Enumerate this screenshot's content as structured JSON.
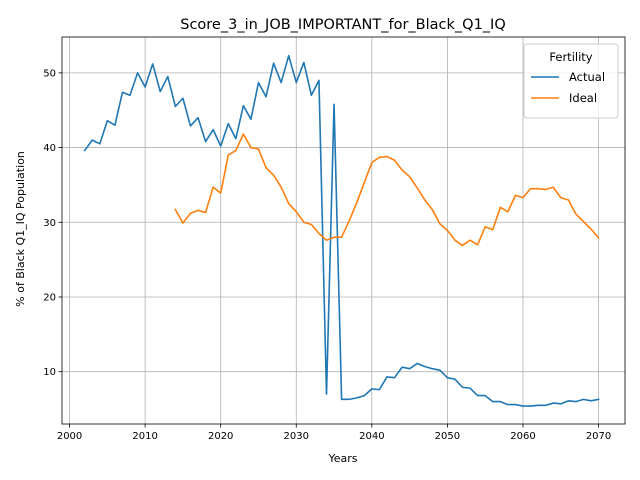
{
  "chart_data": {
    "type": "line",
    "title": "Score_3_in_JOB_IMPORTANT_for_Black_Q1_IQ",
    "xlabel": "Years",
    "ylabel": "% of Black Q1_IQ Population",
    "xlim": [
      1999,
      2073.5
    ],
    "ylim": [
      3.0,
      54.8
    ],
    "xticks": [
      2000,
      2010,
      2020,
      2030,
      2040,
      2050,
      2060,
      2070
    ],
    "yticks": [
      10,
      20,
      30,
      40,
      50
    ],
    "grid": true,
    "legend": {
      "title": "Fertility",
      "placement": "top-right"
    },
    "series": [
      {
        "name": "Actual",
        "color": "#1f77b4",
        "x": [
          2002,
          2003,
          2004,
          2005,
          2006,
          2007,
          2008,
          2009,
          2010,
          2011,
          2012,
          2013,
          2014,
          2015,
          2016,
          2017,
          2018,
          2019,
          2020,
          2021,
          2022,
          2023,
          2024,
          2025,
          2026,
          2027,
          2028,
          2029,
          2030,
          2031,
          2032,
          2033,
          2034,
          2035,
          2036,
          2037,
          2038,
          2039,
          2040,
          2041,
          2042,
          2043,
          2044,
          2045,
          2046,
          2047,
          2048,
          2049,
          2050,
          2051,
          2052,
          2053,
          2054,
          2055,
          2056,
          2057,
          2058,
          2059,
          2060,
          2061,
          2062,
          2063,
          2064,
          2065,
          2066,
          2067,
          2068,
          2069,
          2070
        ],
        "values": [
          39.6,
          41.0,
          40.5,
          43.6,
          43.0,
          47.4,
          47.0,
          50.0,
          48.1,
          51.2,
          47.5,
          49.5,
          45.5,
          46.6,
          42.9,
          44.0,
          40.8,
          42.4,
          40.2,
          43.2,
          41.2,
          45.6,
          43.8,
          48.7,
          46.8,
          51.3,
          48.7,
          52.3,
          48.7,
          51.4,
          47.0,
          49.0,
          7.0,
          45.8,
          6.3,
          6.3,
          6.5,
          6.8,
          7.7,
          7.6,
          9.3,
          9.2,
          10.6,
          10.4,
          11.1,
          10.7,
          10.4,
          10.2,
          9.2,
          9.0,
          7.9,
          7.8,
          6.8,
          6.8,
          6.0,
          6.0,
          5.6,
          5.6,
          5.4,
          5.4,
          5.5,
          5.5,
          5.8,
          5.7,
          6.1,
          6.0,
          6.3,
          6.1,
          6.3
        ]
      },
      {
        "name": "Ideal",
        "color": "#ff7f0e",
        "x": [
          2014,
          2015,
          2016,
          2017,
          2018,
          2019,
          2020,
          2021,
          2022,
          2023,
          2024,
          2025,
          2026,
          2027,
          2028,
          2029,
          2030,
          2031,
          2032,
          2033,
          2034,
          2035,
          2036,
          2037,
          2038,
          2039,
          2040,
          2041,
          2042,
          2043,
          2044,
          2045,
          2046,
          2047,
          2048,
          2049,
          2050,
          2051,
          2052,
          2053,
          2054,
          2055,
          2056,
          2057,
          2058,
          2059,
          2060,
          2061,
          2062,
          2063,
          2064,
          2065,
          2066,
          2067,
          2068,
          2069,
          2070
        ],
        "values": [
          31.7,
          29.9,
          31.2,
          31.6,
          31.3,
          34.7,
          33.9,
          39.0,
          39.6,
          41.8,
          40.0,
          39.8,
          37.3,
          36.3,
          34.7,
          32.5,
          31.4,
          30.0,
          29.7,
          28.5,
          27.6,
          28.0,
          28.0,
          30.2,
          32.6,
          35.3,
          38.0,
          38.7,
          38.8,
          38.3,
          37.0,
          36.1,
          34.6,
          33.0,
          31.7,
          29.8,
          28.9,
          27.6,
          26.9,
          27.6,
          27.0,
          29.4,
          29.0,
          32.0,
          31.4,
          33.6,
          33.3,
          34.5,
          34.5,
          34.4,
          34.7,
          33.3,
          33.0,
          31.1,
          30.1,
          29.1,
          27.9
        ]
      }
    ]
  }
}
